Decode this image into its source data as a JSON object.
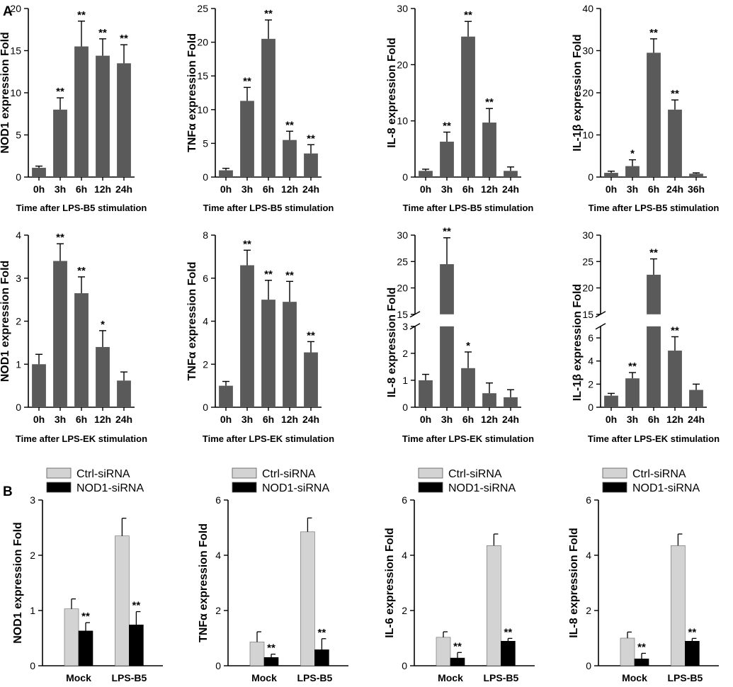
{
  "panel_labels": [
    "A",
    "B"
  ],
  "colors": {
    "bar_dark": "#5a5a5a",
    "bar_light": "#d3d3d3",
    "bar_black": "#000000",
    "axis": "#000000"
  },
  "chart_data": [
    {
      "type": "bar",
      "id": "a1",
      "categories": [
        "0h",
        "3h",
        "6h",
        "12h",
        "24h"
      ],
      "values": [
        1.1,
        8.0,
        15.5,
        14.4,
        13.5
      ],
      "errors": [
        0.2,
        1.4,
        3.0,
        2.0,
        2.2
      ],
      "significance": [
        "",
        "**",
        "**",
        "**",
        "**"
      ],
      "ylabel": "NOD1 expression Fold",
      "xlabel": "Time after LPS-B5 stimulation",
      "ylim": [
        0,
        20
      ],
      "yticks": [
        "0",
        "5",
        "10",
        "15",
        "20"
      ]
    },
    {
      "type": "bar",
      "id": "a2",
      "categories": [
        "0h",
        "3h",
        "6h",
        "12h",
        "24h"
      ],
      "values": [
        1.0,
        11.3,
        20.5,
        5.5,
        3.5
      ],
      "errors": [
        0.3,
        2.0,
        2.8,
        1.3,
        1.3
      ],
      "significance": [
        "",
        "**",
        "**",
        "**",
        "**"
      ],
      "ylabel": "TNFα expression Fold",
      "xlabel": "Time after LPS-B5 stimulation",
      "ylim": [
        0,
        25
      ],
      "yticks": [
        "0",
        "5",
        "10",
        "15",
        "20",
        "25"
      ]
    },
    {
      "type": "bar",
      "id": "a3",
      "categories": [
        "0h",
        "3h",
        "6h",
        "12h",
        "24h"
      ],
      "values": [
        1.1,
        6.3,
        25.0,
        9.7,
        1.1
      ],
      "errors": [
        0.3,
        1.7,
        2.7,
        2.5,
        0.7
      ],
      "significance": [
        "",
        "**",
        "**",
        "**",
        ""
      ],
      "ylabel": "IL-8 expression Fold",
      "xlabel": "Time after LPS-B5 stimulation",
      "ylim": [
        0,
        30
      ],
      "yticks": [
        "0",
        "10",
        "20",
        "30"
      ]
    },
    {
      "type": "bar",
      "id": "a4",
      "categories": [
        "0h",
        "3h",
        "6h",
        "24h",
        "36h"
      ],
      "values": [
        1.0,
        2.6,
        29.5,
        16.0,
        0.8
      ],
      "errors": [
        0.4,
        1.5,
        3.3,
        2.3,
        0.2
      ],
      "significance": [
        "",
        "*",
        "**",
        "**",
        ""
      ],
      "ylabel": "IL-1β expression Fold",
      "xlabel": "Time after LPS-B5 stimulation",
      "ylim": [
        0,
        40
      ],
      "yticks": [
        "0",
        "10",
        "20",
        "30",
        "40"
      ]
    },
    {
      "type": "bar",
      "id": "a5",
      "categories": [
        "0h",
        "3h",
        "6h",
        "12h",
        "24h"
      ],
      "values": [
        1.0,
        3.4,
        2.65,
        1.4,
        0.62
      ],
      "errors": [
        0.23,
        0.4,
        0.38,
        0.38,
        0.2
      ],
      "significance": [
        "",
        "**",
        "**",
        "*",
        ""
      ],
      "ylabel": "NOD1 expression Fold",
      "xlabel": "Time after LPS-EK stimulation",
      "ylim": [
        0,
        4
      ],
      "yticks": [
        "0",
        "1",
        "2",
        "3",
        "4"
      ]
    },
    {
      "type": "bar",
      "id": "a6",
      "categories": [
        "0h",
        "3h",
        "6h",
        "12h",
        "24h"
      ],
      "values": [
        1.0,
        6.6,
        5.0,
        4.9,
        2.55
      ],
      "errors": [
        0.2,
        0.7,
        0.9,
        0.95,
        0.5
      ],
      "significance": [
        "",
        "**",
        "**",
        "**",
        "**"
      ],
      "ylabel": "TNFα expression Fold",
      "xlabel": "Time after LPS-EK stimulation",
      "ylim": [
        0,
        8
      ],
      "yticks": [
        "0",
        "2",
        "4",
        "6",
        "8"
      ]
    },
    {
      "type": "bar",
      "id": "a7",
      "broken_axis": true,
      "categories": [
        "0h",
        "3h",
        "6h",
        "12h",
        "24h"
      ],
      "values": [
        1.0,
        24.5,
        1.45,
        0.52,
        0.37
      ],
      "errors": [
        0.22,
        5.0,
        0.6,
        0.38,
        0.28
      ],
      "significance": [
        "",
        "**",
        "*",
        "",
        ""
      ],
      "ylabel": "IL-8 expression Fold",
      "xlabel": "Time after LPS-EK stimulation",
      "lower_range": [
        0,
        3
      ],
      "upper_range": [
        15,
        30
      ],
      "lower_ticks": [
        "0",
        "1",
        "2",
        "3"
      ],
      "upper_ticks": [
        "15",
        "20",
        "25",
        "30"
      ]
    },
    {
      "type": "bar",
      "id": "a8",
      "broken_axis": true,
      "categories": [
        "0h",
        "3h",
        "6h",
        "12h",
        "24h"
      ],
      "values": [
        1.0,
        2.5,
        22.5,
        4.9,
        1.5
      ],
      "errors": [
        0.2,
        0.5,
        3.0,
        1.2,
        0.5
      ],
      "significance": [
        "",
        "**",
        "**",
        "**",
        ""
      ],
      "ylabel": "IL-1β expression Fold",
      "xlabel": "Time after LPS-EK stimulation",
      "lower_range": [
        0,
        7
      ],
      "upper_range": [
        15,
        30
      ],
      "lower_ticks": [
        "0",
        "2",
        "4",
        "6"
      ],
      "upper_ticks": [
        "15",
        "20",
        "25",
        "30"
      ]
    },
    {
      "type": "bar",
      "id": "b1",
      "grouped": true,
      "categories": [
        "Mock",
        "LPS-B5"
      ],
      "series": [
        {
          "name": "Ctrl-siRNA",
          "values": [
            1.03,
            2.35
          ],
          "errors": [
            0.18,
            0.32
          ],
          "significance": [
            "",
            ""
          ]
        },
        {
          "name": "NOD1-siRNA",
          "values": [
            0.63,
            0.74
          ],
          "errors": [
            0.15,
            0.24
          ],
          "significance": [
            "**",
            "**"
          ]
        }
      ],
      "ylabel": "NOD1 expression Fold",
      "ylim": [
        0,
        3
      ],
      "yticks": [
        "0",
        "1",
        "2",
        "3"
      ]
    },
    {
      "type": "bar",
      "id": "b2",
      "grouped": true,
      "categories": [
        "Mock",
        "LPS-B5"
      ],
      "series": [
        {
          "name": "Ctrl-siRNA",
          "values": [
            0.86,
            4.85
          ],
          "errors": [
            0.37,
            0.5
          ],
          "significance": [
            "",
            ""
          ]
        },
        {
          "name": "NOD1-siRNA",
          "values": [
            0.3,
            0.58
          ],
          "errors": [
            0.12,
            0.4
          ],
          "significance": [
            "**",
            "**"
          ]
        }
      ],
      "ylabel": "TNFα expression Fold",
      "ylim": [
        0,
        6
      ],
      "yticks": [
        "0",
        "2",
        "4",
        "6"
      ]
    },
    {
      "type": "bar",
      "id": "b3",
      "grouped": true,
      "categories": [
        "Mock",
        "LPS-B5"
      ],
      "series": [
        {
          "name": "Ctrl-siRNA",
          "values": [
            1.03,
            4.35
          ],
          "errors": [
            0.2,
            0.42
          ],
          "significance": [
            "",
            ""
          ]
        },
        {
          "name": "NOD1-siRNA",
          "values": [
            0.28,
            0.89
          ],
          "errors": [
            0.2,
            0.1
          ],
          "significance": [
            "**",
            "**"
          ]
        }
      ],
      "ylabel": "IL-6 expression Fold",
      "ylim": [
        0,
        6
      ],
      "yticks": [
        "0",
        "2",
        "4",
        "6"
      ]
    },
    {
      "type": "bar",
      "id": "b4",
      "grouped": true,
      "categories": [
        "Mock",
        "LPS-B5"
      ],
      "series": [
        {
          "name": "Ctrl-siRNA",
          "values": [
            1.0,
            4.35
          ],
          "errors": [
            0.22,
            0.42
          ],
          "significance": [
            "",
            ""
          ]
        },
        {
          "name": "NOD1-siRNA",
          "values": [
            0.25,
            0.89
          ],
          "errors": [
            0.2,
            0.1
          ],
          "significance": [
            "**",
            "**"
          ]
        }
      ],
      "ylabel": "IL-8 expression Fold",
      "ylim": [
        0,
        6
      ],
      "yticks": [
        "0",
        "2",
        "4",
        "6"
      ]
    }
  ]
}
